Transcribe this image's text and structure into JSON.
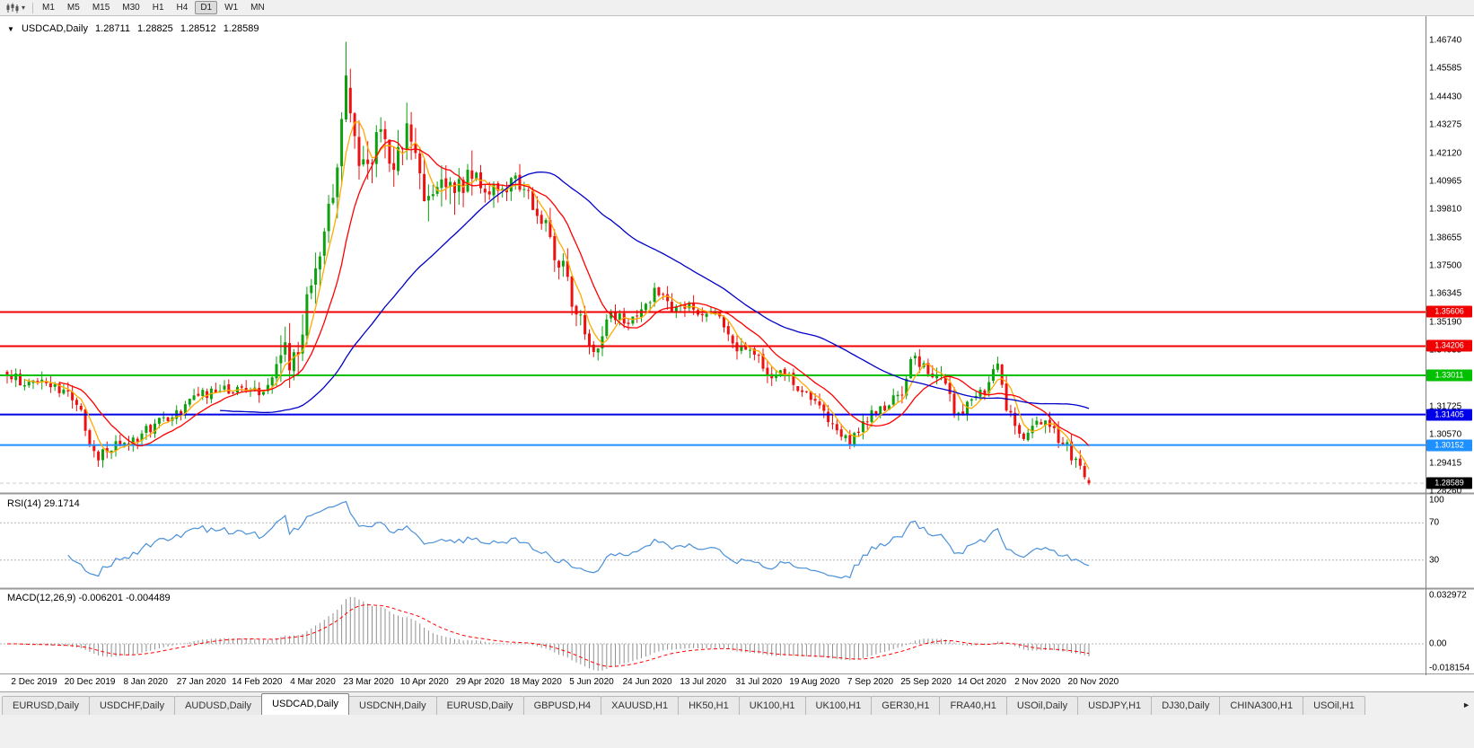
{
  "toolbar": {
    "timeframes": [
      "M1",
      "M5",
      "M15",
      "M30",
      "H1",
      "H4",
      "D1",
      "W1",
      "MN"
    ],
    "active_timeframe": "D1"
  },
  "icons": {
    "chart_menu_triangle": "▼",
    "chart_type_caret": "▾",
    "tabs_scroll_right": "►"
  },
  "header": {
    "symbol": "USDCAD,Daily",
    "open": "1.28711",
    "high": "1.28825",
    "low": "1.28512",
    "close": "1.28589"
  },
  "colors": {
    "up": "#0fa00f",
    "down": "#ee1111",
    "separator": "#999999",
    "bid_line": "#cccccc",
    "grid_dash": "#b4b4b4",
    "axis_text": "#000000",
    "toolbar_bg": "#f0f0f0",
    "chart_bg": "#ffffff"
  },
  "chart_data": {
    "type": "candlestick",
    "symbol": "USDCAD",
    "timeframe": "Daily",
    "bars": 250,
    "quote": {
      "open": 1.28711,
      "high": 1.28825,
      "low": 1.28512,
      "close": 1.28589
    },
    "price_axis": {
      "max": 1.4674,
      "min": 1.2826,
      "step": 0.01155,
      "labels": [
        "1.46740",
        "1.45585",
        "1.44430",
        "1.43275",
        "1.42120",
        "1.40965",
        "1.39810",
        "1.38655",
        "1.37500",
        "1.36345",
        "1.35190",
        "1.34035",
        "1.32880",
        "1.31725",
        "1.30570",
        "1.29415",
        "1.28260"
      ]
    },
    "dates": [
      "2 Dec 2019",
      "20 Dec 2019",
      "8 Jan 2020",
      "27 Jan 2020",
      "14 Feb 2020",
      "4 Mar 2020",
      "23 Mar 2020",
      "10 Apr 2020",
      "29 Apr 2020",
      "18 May 2020",
      "5 Jun 2020",
      "24 Jun 2020",
      "13 Jul 2020",
      "31 Jul 2020",
      "19 Aug 2020",
      "7 Sep 2020",
      "25 Sep 2020",
      "14 Oct 2020",
      "2 Nov 2020",
      "20 Nov 2020"
    ],
    "hlines": [
      {
        "value": 1.35606,
        "label": "1.35606",
        "color": "#f00000"
      },
      {
        "value": 1.34206,
        "label": "1.34206",
        "color": "#f00000"
      },
      {
        "value": 1.33011,
        "label": "1.33011",
        "color": "#00c000"
      },
      {
        "value": 1.31405,
        "label": "1.31405",
        "color": "#0000e8"
      },
      {
        "value": 1.30152,
        "label": "1.30152",
        "color": "#1e90ff"
      }
    ],
    "current_price": {
      "value": 1.28589,
      "label": "1.28589",
      "bg": "#000000"
    },
    "spike": {
      "t": 0.313,
      "high": 1.4668
    },
    "price_path": [
      [
        0.0,
        1.329
      ],
      [
        0.03,
        1.3268
      ],
      [
        0.06,
        1.321
      ],
      [
        0.084,
        1.2968
      ],
      [
        0.11,
        1.3035
      ],
      [
        0.15,
        1.312
      ],
      [
        0.175,
        1.323
      ],
      [
        0.213,
        1.3248
      ],
      [
        0.237,
        1.3225
      ],
      [
        0.253,
        1.3395
      ],
      [
        0.265,
        1.338
      ],
      [
        0.277,
        1.358
      ],
      [
        0.293,
        1.388
      ],
      [
        0.301,
        1.401
      ],
      [
        0.313,
        1.45
      ],
      [
        0.317,
        1.44
      ],
      [
        0.33,
        1.412
      ],
      [
        0.345,
        1.431
      ],
      [
        0.357,
        1.418
      ],
      [
        0.37,
        1.433
      ],
      [
        0.385,
        1.408
      ],
      [
        0.4,
        1.412
      ],
      [
        0.413,
        1.403
      ],
      [
        0.43,
        1.413
      ],
      [
        0.45,
        1.405
      ],
      [
        0.47,
        1.411
      ],
      [
        0.49,
        1.398
      ],
      [
        0.51,
        1.378
      ],
      [
        0.53,
        1.352
      ],
      [
        0.545,
        1.34
      ],
      [
        0.558,
        1.356
      ],
      [
        0.57,
        1.353
      ],
      [
        0.585,
        1.356
      ],
      [
        0.6,
        1.364
      ],
      [
        0.615,
        1.357
      ],
      [
        0.63,
        1.3595
      ],
      [
        0.645,
        1.356
      ],
      [
        0.66,
        1.353
      ],
      [
        0.675,
        1.3415
      ],
      [
        0.69,
        1.339
      ],
      [
        0.705,
        1.329
      ],
      [
        0.72,
        1.332
      ],
      [
        0.735,
        1.322
      ],
      [
        0.75,
        1.318
      ],
      [
        0.765,
        1.309
      ],
      [
        0.78,
        1.303
      ],
      [
        0.793,
        1.313
      ],
      [
        0.808,
        1.316
      ],
      [
        0.822,
        1.32
      ],
      [
        0.838,
        1.337
      ],
      [
        0.852,
        1.332
      ],
      [
        0.865,
        1.328
      ],
      [
        0.878,
        1.314
      ],
      [
        0.89,
        1.319
      ],
      [
        0.903,
        1.323
      ],
      [
        0.915,
        1.333
      ],
      [
        0.928,
        1.313
      ],
      [
        0.94,
        1.302
      ],
      [
        0.952,
        1.312
      ],
      [
        0.965,
        1.309
      ],
      [
        0.978,
        1.301
      ],
      [
        0.99,
        1.294
      ],
      [
        1.0,
        1.286
      ]
    ],
    "moving_averages": [
      {
        "period": 5,
        "color": "#ffaa00"
      },
      {
        "period": 13,
        "color": "#ff0000"
      },
      {
        "period": 50,
        "color": "#0000c8"
      }
    ],
    "rsi": {
      "label": "RSI(14) 29.1714",
      "period": 14,
      "last": 29.1714,
      "levels": [
        "100",
        "70",
        "30"
      ],
      "level_values": [
        100,
        70,
        30
      ],
      "color": "#4a90d9"
    },
    "macd": {
      "label": "MACD(12,26,9) -0.006201 -0.004489",
      "fast": 12,
      "slow": 26,
      "signal": 9,
      "values": [
        -0.006201,
        -0.004489
      ],
      "max": 0.032972,
      "min": -0.018154,
      "axis_labels": [
        "0.032972",
        "0.00",
        "-0.018154"
      ],
      "hist_color": "#909090",
      "signal_color": "#ff0000"
    }
  },
  "tabs": {
    "items": [
      "EURUSD,Daily",
      "USDCHF,Daily",
      "AUDUSD,Daily",
      "USDCAD,Daily",
      "USDCNH,Daily",
      "EURUSD,Daily",
      "GBPUSD,H4",
      "XAUUSD,H1",
      "HK50,H1",
      "UK100,H1",
      "UK100,H1",
      "GER30,H1",
      "FRA40,H1",
      "USOil,Daily",
      "USDJPY,H1",
      "DJ30,Daily",
      "CHINA300,H1",
      "USOil,H1"
    ],
    "active_index": 3
  }
}
